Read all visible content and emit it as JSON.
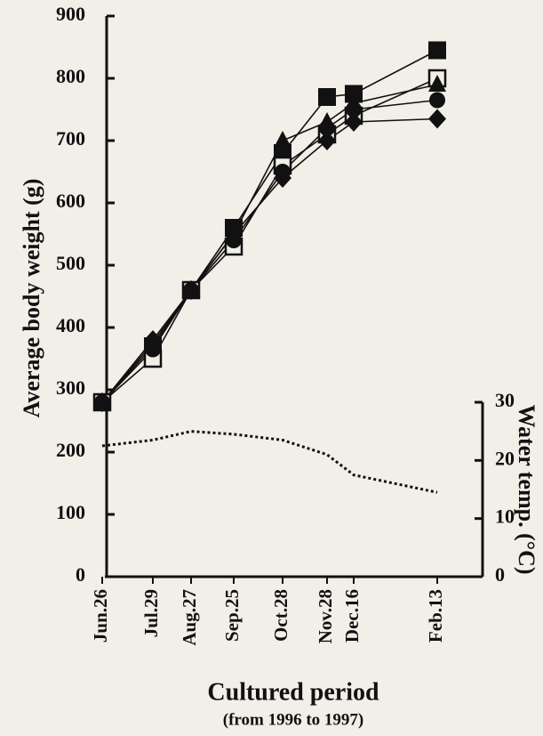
{
  "chart_data": {
    "type": "line",
    "ylabel": "Average body weight (g)",
    "y2label": "Water temp. (°C)",
    "xlabel": "Cultured period",
    "subtitle": "(from 1996 to 1997)",
    "categories": [
      "Jun.26",
      "Jul.29",
      "Aug.27",
      "Sep.25",
      "Oct.28",
      "Nov.28",
      "Dec.16",
      "Feb.13"
    ],
    "ylim": [
      0,
      900
    ],
    "yticks": [
      0,
      100,
      200,
      300,
      400,
      500,
      600,
      700,
      800,
      900
    ],
    "y2lim": [
      0,
      30
    ],
    "y2ticks": [
      0,
      10,
      20,
      30
    ],
    "series": [
      {
        "marker": "square",
        "color": "#111111",
        "values": [
          280,
          370,
          460,
          560,
          680,
          770,
          775,
          845
        ]
      },
      {
        "marker": "open-square",
        "color": "#111111",
        "values": [
          280,
          350,
          460,
          530,
          660,
          710,
          740,
          800
        ]
      },
      {
        "marker": "triangle",
        "color": "#111111",
        "values": [
          280,
          375,
          460,
          550,
          700,
          730,
          760,
          790
        ]
      },
      {
        "marker": "circle",
        "color": "#111111",
        "values": [
          280,
          365,
          460,
          540,
          650,
          720,
          750,
          765
        ]
      },
      {
        "marker": "diamond",
        "color": "#111111",
        "values": [
          280,
          380,
          460,
          550,
          640,
          700,
          730,
          735
        ]
      },
      {
        "axis": "y2",
        "dash": "dotted",
        "color": "#111111",
        "values": [
          22.5,
          23.5,
          25,
          24.5,
          23.5,
          21,
          17.5,
          14.5
        ]
      }
    ]
  }
}
